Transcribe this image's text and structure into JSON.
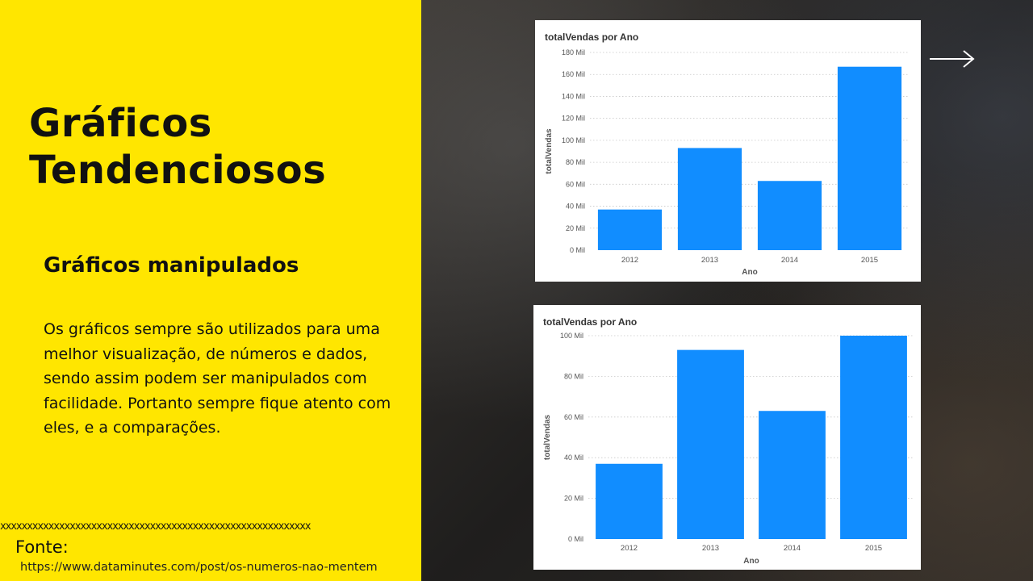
{
  "slide": {
    "title_line1": "Gráficos",
    "title_line2": "Tendenciosos",
    "subtitle": "Gráficos manipulados",
    "body": "Os gráficos sempre são utilizados para uma melhor visualização, de números e dados, sendo assim podem ser manipulados  com facilidade. Portanto sempre fique atento com eles, e a comparações.",
    "separator": "xxxxxxxxxxxxxxxxxxxxxxxxxxxxxxxxxxxxxxxxxxxxxxxxxxxxxxxxxx",
    "source_label": "Fonte:",
    "source_url": "https://www.dataminutes.com/post/os-numeros-nao-mentem",
    "next_icon": "arrow-right-icon"
  },
  "colors": {
    "panel": "#ffe600",
    "bar": "#118dff"
  },
  "chart_data": [
    {
      "type": "bar",
      "title": "totalVendas por Ano",
      "xlabel": "Ano",
      "ylabel": "totalVendas",
      "categories": [
        "2012",
        "2013",
        "2014",
        "2015"
      ],
      "values": [
        37,
        93,
        63,
        167
      ],
      "ylim": [
        0,
        180
      ],
      "yticks": [
        0,
        20,
        40,
        60,
        80,
        100,
        120,
        140,
        160,
        180
      ],
      "ytick_labels": [
        "0 Mil",
        "20 Mil",
        "40 Mil",
        "60 Mil",
        "80 Mil",
        "100 Mil",
        "120 Mil",
        "140 Mil",
        "160 Mil",
        "180 Mil"
      ],
      "grid": true
    },
    {
      "type": "bar",
      "title": "totalVendas por Ano",
      "xlabel": "Ano",
      "ylabel": "totalVendas",
      "categories": [
        "2012",
        "2013",
        "2014",
        "2015"
      ],
      "values": [
        37,
        93,
        63,
        100
      ],
      "ylim": [
        0,
        100
      ],
      "yticks": [
        0,
        20,
        40,
        60,
        80,
        100
      ],
      "ytick_labels": [
        "0 Mil",
        "20 Mil",
        "40 Mil",
        "60 Mil",
        "80 Mil",
        "100 Mil"
      ],
      "grid": true
    }
  ]
}
